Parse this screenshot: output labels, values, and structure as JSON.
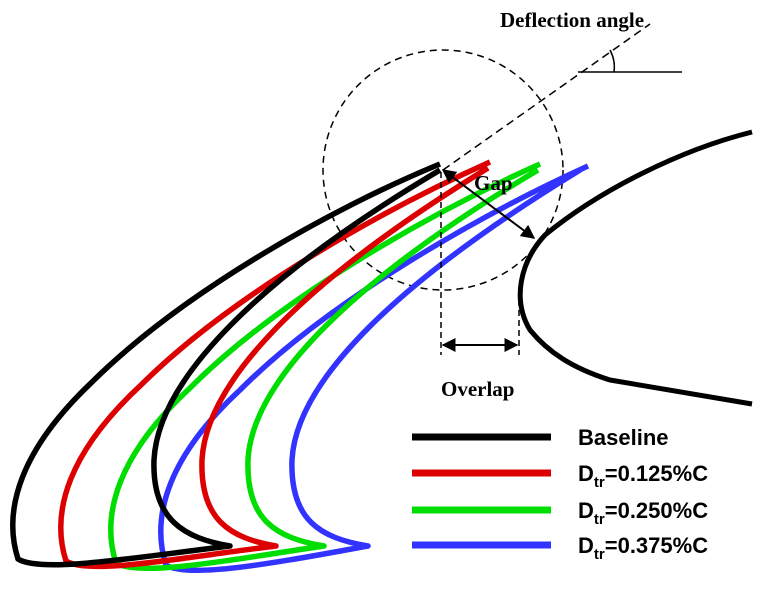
{
  "annotations": {
    "deflection_angle": "Deflection angle",
    "gap": "Gap",
    "overlap": "Overlap"
  },
  "legend": [
    {
      "main": "Baseline",
      "sub": "",
      "rest": "",
      "color": "#000000"
    },
    {
      "main": "D",
      "sub": "tr",
      "rest": "=0.125%C",
      "color": "#dd0000"
    },
    {
      "main": "D",
      "sub": "tr",
      "rest": "=0.250%C",
      "color": "#00dd00"
    },
    {
      "main": "D",
      "sub": "tr",
      "rest": "=0.375%C",
      "color": "#3333ff"
    }
  ]
}
